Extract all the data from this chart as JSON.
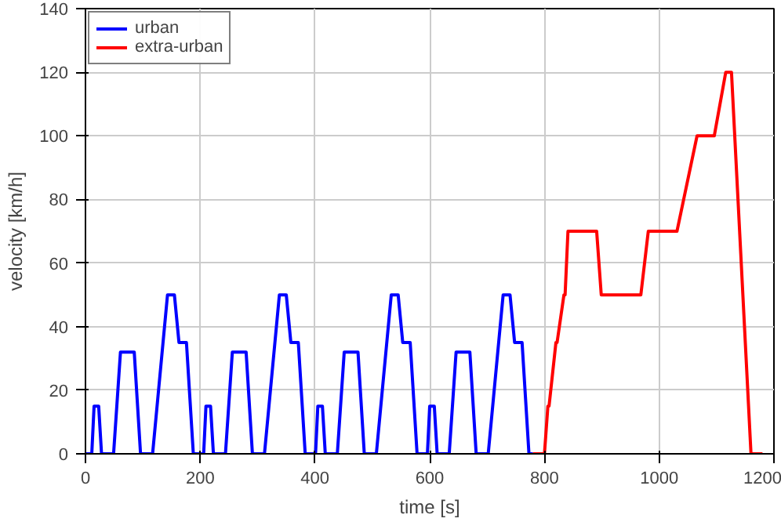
{
  "chart_data": {
    "type": "line",
    "xlabel": "time [s]",
    "ylabel": "velocity [km/h]",
    "xlim": [
      0,
      1200
    ],
    "ylim": [
      0,
      140
    ],
    "xticks": [
      0,
      200,
      400,
      600,
      800,
      1000,
      1200
    ],
    "yticks": [
      0,
      20,
      40,
      60,
      80,
      100,
      120,
      140
    ],
    "grid": true,
    "legend": "top left",
    "line_style": "solid",
    "marker": "none",
    "series": [
      {
        "name": "urban",
        "color": "#0000ff",
        "x": [
          0,
          11,
          15,
          23,
          28,
          49,
          61,
          85,
          96,
          117,
          143,
          155,
          163,
          176,
          188,
          195,
          206,
          210,
          218,
          223,
          244,
          256,
          280,
          291,
          312,
          338,
          350,
          358,
          371,
          383,
          390,
          401,
          405,
          413,
          418,
          439,
          451,
          475,
          486,
          507,
          533,
          545,
          553,
          566,
          578,
          585,
          596,
          600,
          608,
          613,
          634,
          646,
          670,
          681,
          702,
          728,
          740,
          748,
          761,
          773,
          780
        ],
        "values": [
          0,
          0,
          15,
          15,
          0,
          0,
          32,
          32,
          0,
          0,
          50,
          50,
          35,
          35,
          0,
          0,
          0,
          15,
          15,
          0,
          0,
          32,
          32,
          0,
          0,
          50,
          50,
          35,
          35,
          0,
          0,
          0,
          15,
          15,
          0,
          0,
          32,
          32,
          0,
          0,
          50,
          50,
          35,
          35,
          0,
          0,
          0,
          15,
          15,
          0,
          0,
          32,
          32,
          0,
          0,
          50,
          50,
          35,
          35,
          0,
          0
        ]
      },
      {
        "name": "extra-urban",
        "color": "#ff0000",
        "x": [
          780,
          800,
          806,
          808,
          820,
          822,
          834,
          836,
          841,
          891,
          899,
          968,
          981,
          1031,
          1066,
          1096,
          1116,
          1126,
          1160,
          1180
        ],
        "values": [
          0,
          0,
          15,
          15,
          35,
          35,
          50,
          50,
          70,
          70,
          50,
          50,
          70,
          70,
          100,
          100,
          120,
          120,
          0,
          0
        ]
      }
    ]
  }
}
